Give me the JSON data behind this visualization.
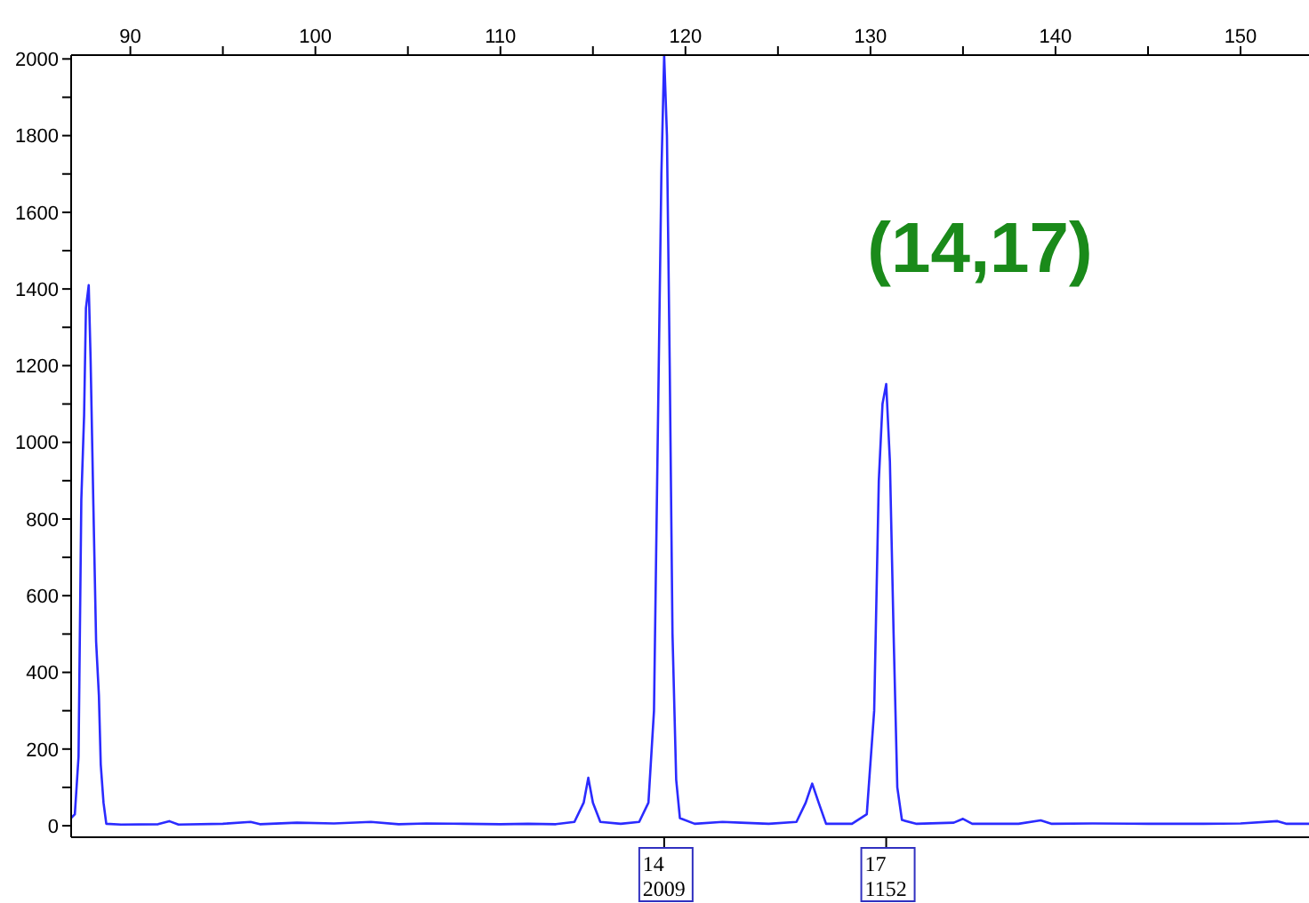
{
  "chart_data": {
    "type": "line",
    "title": "(14,17)",
    "x": [
      86.8,
      87.0,
      87.2,
      87.35,
      87.5,
      87.6,
      87.75,
      87.85,
      88.0,
      88.15,
      88.3,
      88.4,
      88.55,
      88.7,
      89.5,
      91.5,
      92.1,
      92.6,
      95,
      96.5,
      97,
      99,
      101,
      103,
      104.5,
      106,
      108,
      110,
      111.5,
      113,
      114.0,
      114.5,
      114.75,
      115.0,
      115.4,
      116.5,
      117.5,
      118.0,
      118.3,
      118.5,
      118.7,
      118.85,
      119.0,
      119.15,
      119.3,
      119.5,
      119.7,
      120.5,
      122,
      123,
      124.5,
      126.0,
      126.5,
      126.85,
      127.2,
      127.6,
      129.0,
      129.8,
      130.2,
      130.45,
      130.65,
      130.85,
      131.05,
      131.25,
      131.45,
      131.7,
      132.5,
      134.5,
      135,
      135.5,
      138,
      139.2,
      139.8,
      142,
      145,
      148,
      150,
      152,
      152.5,
      153.7
    ],
    "series": [
      {
        "color": "#2b2bff",
        "values": [
          20,
          30,
          180,
          850,
          1070,
          1350,
          1410,
          1220,
          840,
          480,
          340,
          160,
          60,
          5,
          3,
          4,
          12,
          3,
          5,
          10,
          4,
          8,
          6,
          10,
          4,
          6,
          5,
          4,
          5,
          4,
          10,
          60,
          125,
          60,
          10,
          5,
          10,
          60,
          300,
          1000,
          1700,
          2009,
          1800,
          1200,
          500,
          120,
          20,
          5,
          10,
          8,
          5,
          10,
          60,
          110,
          60,
          5,
          5,
          30,
          300,
          900,
          1100,
          1152,
          950,
          500,
          100,
          15,
          5,
          8,
          18,
          5,
          5,
          14,
          5,
          6,
          5,
          5,
          6,
          12,
          5,
          5
        ]
      }
    ],
    "xlim": [
      86.8,
      153.7
    ],
    "xticks": [
      90,
      {
        "value": 95,
        "label": null
      },
      100,
      {
        "value": 105,
        "label": null
      },
      110,
      {
        "value": 115,
        "label": null
      },
      120,
      {
        "value": 125,
        "label": null
      },
      130,
      {
        "value": 135,
        "label": null
      },
      140,
      {
        "value": 145,
        "label": null
      },
      150
    ],
    "ylim": [
      -30,
      2010
    ],
    "yticks": [
      0,
      {
        "value": 100,
        "label": null
      },
      200,
      {
        "value": 300,
        "label": null
      },
      400,
      {
        "value": 500,
        "label": null
      },
      600,
      {
        "value": 700,
        "label": null
      },
      800,
      {
        "value": 900,
        "label": null
      },
      1000,
      {
        "value": 1100,
        "label": null
      },
      1200,
      {
        "value": 1300,
        "label": null
      },
      1400,
      {
        "value": 1500,
        "label": null
      },
      1600,
      {
        "value": 1700,
        "label": null
      },
      1800,
      {
        "value": 1900,
        "label": null
      },
      2000
    ],
    "annotations": [
      {
        "text": "14\n2009",
        "x": 118.85
      },
      {
        "text": "17\n1152",
        "x": 130.85
      }
    ],
    "grid": false,
    "legend": false,
    "marker": "none",
    "line_style": "solid"
  }
}
